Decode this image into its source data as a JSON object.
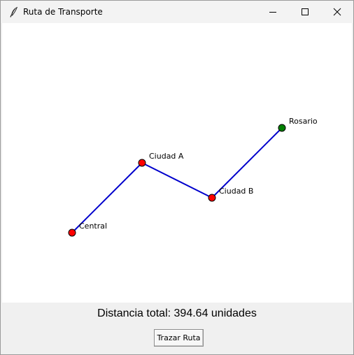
{
  "window": {
    "title": "Ruta de Transporte"
  },
  "controls": {
    "minimize_icon": "minimize-icon",
    "maximize_icon": "maximize-icon",
    "close_icon": "close-icon"
  },
  "map": {
    "route_color": "#0000cc",
    "cities": [
      {
        "name": "Central",
        "color": "#ff0000"
      },
      {
        "name": "Ciudad A",
        "color": "#ff0000"
      },
      {
        "name": "Ciudad B",
        "color": "#ff0000"
      },
      {
        "name": "Rosario",
        "color": "#008000"
      }
    ]
  },
  "footer": {
    "distance_text": "Distancia total: 394.64 unidades",
    "button_label": "Trazar Ruta"
  }
}
